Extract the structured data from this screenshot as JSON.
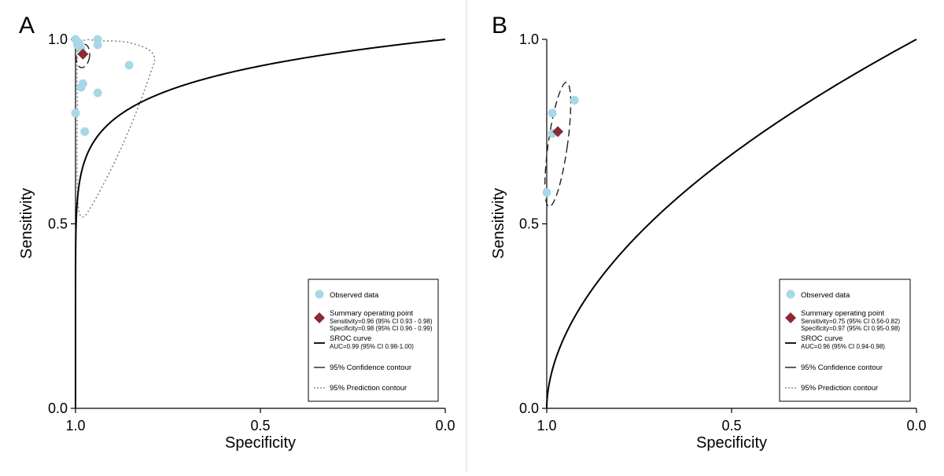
{
  "colors": {
    "observed": "#a8d8e6",
    "summary": "#8b2a36",
    "curve": "#000000",
    "frame": "#000000"
  },
  "chart_data": [
    {
      "type": "scatter",
      "panel_label": "A",
      "xlabel": "Specificity",
      "ylabel": "Sensitivity",
      "x_direction": "reversed",
      "xlim": [
        1.0,
        0.0
      ],
      "ylim": [
        0.0,
        1.0
      ],
      "xticks": [
        "1.0",
        "0.5",
        "0.0"
      ],
      "yticks": [
        "0.0",
        "0.5",
        "1.0"
      ],
      "observed": [
        {
          "specificity": 1.0,
          "sensitivity": 1.0
        },
        {
          "specificity": 0.995,
          "sensitivity": 0.985
        },
        {
          "specificity": 0.99,
          "sensitivity": 0.99
        },
        {
          "specificity": 0.985,
          "sensitivity": 0.975
        },
        {
          "specificity": 0.94,
          "sensitivity": 1.0
        },
        {
          "specificity": 0.94,
          "sensitivity": 0.985
        },
        {
          "specificity": 0.855,
          "sensitivity": 0.93
        },
        {
          "specificity": 0.98,
          "sensitivity": 0.88
        },
        {
          "specificity": 0.985,
          "sensitivity": 0.87
        },
        {
          "specificity": 0.94,
          "sensitivity": 0.855
        },
        {
          "specificity": 1.0,
          "sensitivity": 0.8
        },
        {
          "specificity": 0.975,
          "sensitivity": 0.75
        }
      ],
      "summary_point": {
        "specificity": 0.98,
        "sensitivity": 0.96
      },
      "sroc_shape": 0.012,
      "confidence_contour": {
        "specificity": 0.98,
        "sensitivity": 0.955,
        "half_width_spec": 0.018,
        "half_height_sens": 0.032,
        "tilt_deg": 8
      },
      "prediction_contour": [
        {
          "specificity": 0.99,
          "sensitivity": 0.98
        },
        {
          "specificity": 0.93,
          "sensitivity": 0.995
        },
        {
          "specificity": 0.85,
          "sensitivity": 0.99
        },
        {
          "specificity": 0.79,
          "sensitivity": 0.96
        },
        {
          "specificity": 0.8,
          "sensitivity": 0.9
        },
        {
          "specificity": 0.87,
          "sensitivity": 0.72
        },
        {
          "specificity": 0.95,
          "sensitivity": 0.56
        },
        {
          "specificity": 0.985,
          "sensitivity": 0.52
        },
        {
          "specificity": 0.995,
          "sensitivity": 0.6
        },
        {
          "specificity": 0.995,
          "sensitivity": 0.8
        }
      ],
      "legend_position": "bottom-right",
      "legend": [
        {
          "kind": "observed",
          "label": "Observed data"
        },
        {
          "kind": "summary",
          "label": "Summary operating point",
          "sub": [
            "Sensitivity=0.96 (95% CI 0.93 - 0.98)",
            "Specificity=0.98 (95% CI 0.96 - 0.99)"
          ]
        },
        {
          "kind": "sroc",
          "label": "SROC curve",
          "sub": [
            "AUC=0.99 (95% CI 0.98-1.00)"
          ]
        },
        {
          "kind": "solid",
          "label": "95% Confidence contour",
          "sub": []
        },
        {
          "kind": "dotted",
          "label": "95% Prediction contour",
          "sub": []
        }
      ]
    },
    {
      "type": "scatter",
      "panel_label": "B",
      "xlabel": "Specificity",
      "ylabel": "Sensitivity",
      "x_direction": "reversed",
      "xlim": [
        1.0,
        0.0
      ],
      "ylim": [
        0.0,
        1.0
      ],
      "xticks": [
        "1.0",
        "0.5",
        "0.0"
      ],
      "yticks": [
        "0.0",
        "0.5",
        "1.0"
      ],
      "observed": [
        {
          "specificity": 1.0,
          "sensitivity": 0.585
        },
        {
          "specificity": 0.985,
          "sensitivity": 0.8
        },
        {
          "specificity": 0.985,
          "sensitivity": 0.745
        },
        {
          "specificity": 0.925,
          "sensitivity": 0.835
        }
      ],
      "summary_point": {
        "specificity": 0.97,
        "sensitivity": 0.75
      },
      "sroc_shape": 0.06,
      "confidence_contour": {
        "specificity": 0.97,
        "sensitivity": 0.715,
        "half_width_spec": 0.026,
        "half_height_sens": 0.17,
        "tilt_deg": 8
      },
      "prediction_contour": [],
      "legend_position": "bottom-right",
      "legend": [
        {
          "kind": "observed",
          "label": "Observed data"
        },
        {
          "kind": "summary",
          "label": "Summary operating point",
          "sub": [
            "Sensitivity=0.75 (95% CI 0.56-0.82)",
            "Specificity=0.97 (95% CI 0.95-0.98)"
          ]
        },
        {
          "kind": "sroc",
          "label": "SROC curve",
          "sub": [
            "AUC=0.96 (95% CI 0.94-0.98)"
          ]
        },
        {
          "kind": "dashed",
          "label": "95% Confidence contour",
          "sub": []
        },
        {
          "kind": "dotted",
          "label": "95% Prediction contour",
          "sub": []
        }
      ]
    }
  ]
}
